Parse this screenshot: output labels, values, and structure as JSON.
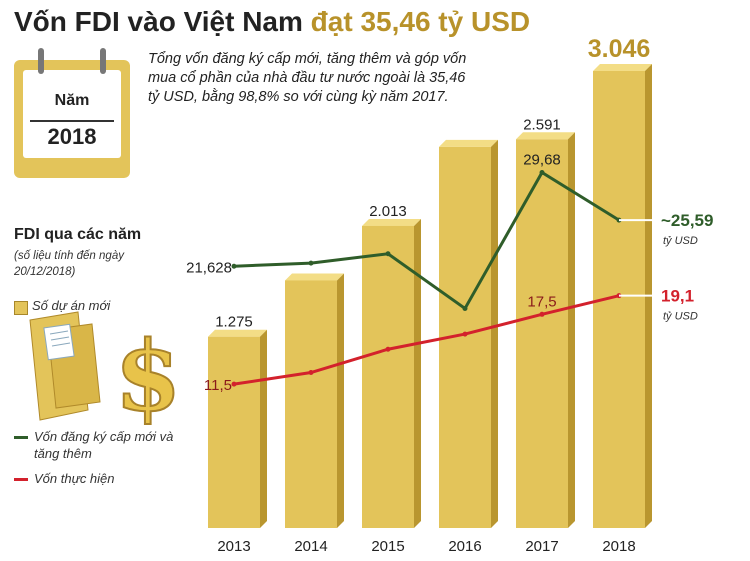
{
  "title": {
    "main": "Vốn FDI vào Việt Nam",
    "highlight": "đạt 35,46 tỷ USD"
  },
  "description": "Tổng vốn đăng ký cấp mới, tăng thêm và góp vốn mua cổ phần của nhà đầu tư nước ngoài là 35,46 tỷ USD, bằng 98,8% so với cùng kỳ năm 2017.",
  "calendar": {
    "label": "Năm",
    "year": "2018"
  },
  "section": {
    "title": "FDI qua các năm",
    "note": "(số liệu tính đến ngày 20/12/2018)"
  },
  "legend": {
    "projects": "Số dự án mới",
    "registered": "Vốn đăng ký cấp mới và tăng thêm",
    "disbursed": "Vốn thực hiện"
  },
  "colors": {
    "bar": "#e3c45a",
    "registered": "#2f5d2a",
    "disbursed": "#d3212c"
  },
  "chart_data": {
    "type": "bar",
    "categories": [
      "2013",
      "2014",
      "2015",
      "2016",
      "2017",
      "2018"
    ],
    "bars": {
      "values": [
        1275,
        1650,
        2013,
        2540,
        2591,
        3046
      ],
      "labels": [
        "1.275",
        "",
        "2.013",
        "",
        "2.591",
        "3.046"
      ]
    },
    "series": [
      {
        "values": [
          21.628,
          21.9,
          22.7,
          18.0,
          29.68,
          25.59
        ],
        "labels": [
          "21,628",
          "",
          "",
          "",
          "29,68",
          "~25,59"
        ],
        "unit": "tỷ USD"
      },
      {
        "values": [
          11.5,
          12.5,
          14.5,
          15.8,
          17.5,
          19.1
        ],
        "labels": [
          "11,5",
          "",
          "",
          "",
          "17,5",
          "19,1"
        ],
        "unit": "tỷ USD"
      }
    ]
  }
}
